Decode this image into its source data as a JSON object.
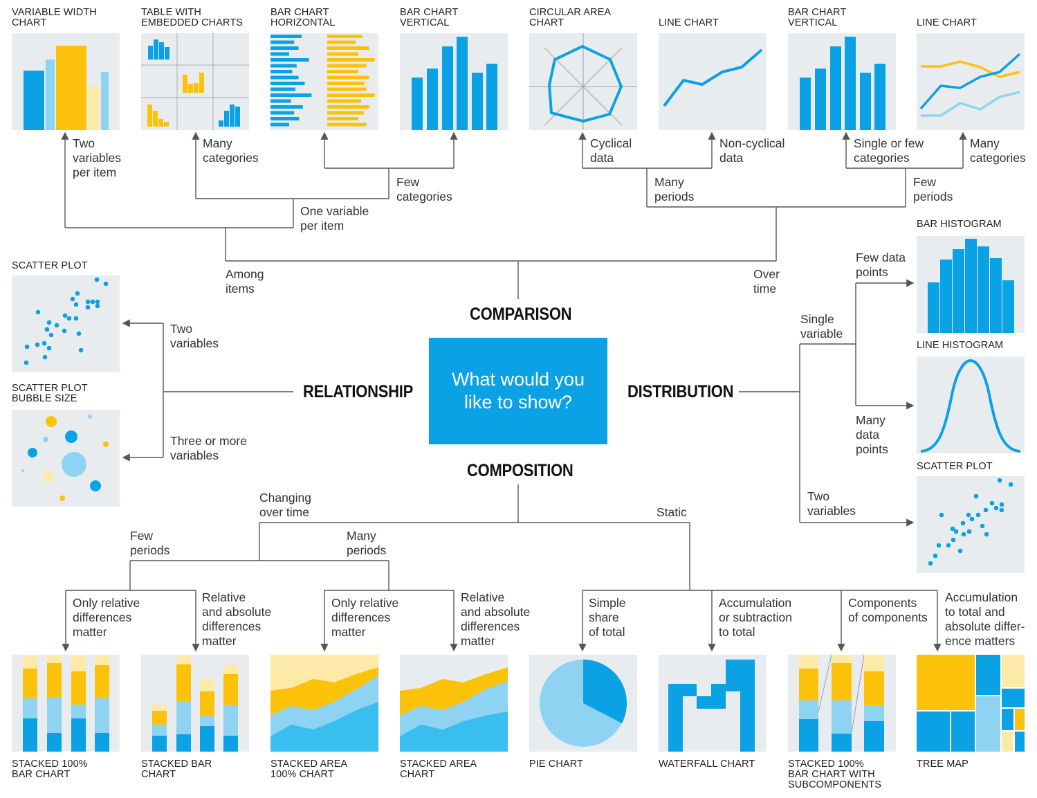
{
  "center": {
    "question": "What would you\nlike to show?"
  },
  "categories": {
    "comparison": "COMPARISON",
    "relationship": "RELATIONSHIP",
    "distribution": "DISTRIBUTION",
    "composition": "COMPOSITION"
  },
  "charts": {
    "variable_width": "VARIABLE WIDTH\nCHART",
    "table_embedded": "TABLE WITH\nEMBEDDED CHARTS",
    "bar_horizontal": "BAR CHART\nHORIZONTAL",
    "bar_vertical_1": "BAR CHART\nVERTICAL",
    "circular_area": "CIRCULAR AREA\nCHART",
    "line_chart_1": "LINE CHART",
    "bar_vertical_2": "BAR CHART\nVERTICAL",
    "line_chart_2": "LINE CHART",
    "scatter_plot_1": "SCATTER PLOT",
    "scatter_bubble": "SCATTER PLOT\nBUBBLE SIZE",
    "bar_histogram": "BAR HISTOGRAM",
    "line_histogram": "LINE HISTOGRAM",
    "scatter_plot_2": "SCATTER PLOT",
    "stacked_100_bar": "STACKED 100%\nBAR CHART",
    "stacked_bar": "STACKED BAR\nCHART",
    "stacked_area_100": "STACKED AREA\n100% CHART",
    "stacked_area": "STACKED AREA\nCHART",
    "pie": "PIE CHART",
    "waterfall": "WATERFALL CHART",
    "stacked_100_sub": "STACKED 100%\nBAR CHART WITH\nSUBCOMPONENTS",
    "tree_map": "TREE MAP"
  },
  "notes": {
    "two_variables_per_item": "Two\nvariables\nper item",
    "many_categories_1": "Many\ncategories",
    "few_categories": "Few\ncategories",
    "one_variable_per_item": "One variable\nper item",
    "among_items": "Among\nitems",
    "cyclical_data": "Cyclical\ndata",
    "non_cyclical_data": "Non-cyclical\ndata",
    "single_or_few": "Single or few\ncategories",
    "many_categories_2": "Many\ncategories",
    "many_periods_1": "Many\nperiods",
    "few_periods_1": "Few\nperiods",
    "over_time": "Over\ntime",
    "two_variables_rel": "Two\nvariables",
    "three_or_more": "Three or more\nvariables",
    "few_data_points": "Few data\npoints",
    "single_variable": "Single\nvariable",
    "many_data_points": "Many\ndata\npoints",
    "two_variables_dist": "Two\nvariables",
    "changing_over_time": "Changing\nover time",
    "static": "Static",
    "few_periods_2": "Few\nperiods",
    "many_periods_2": "Many\nperiods",
    "only_relative_1": "Only relative\ndifferences\nmatter",
    "relative_absolute_1": "Relative\nand absolute\ndifferences\nmatter",
    "only_relative_2": "Only relative\ndifferences\nmatter",
    "relative_absolute_2": "Relative\nand absolute\ndifferences\nmatter",
    "simple_share": "Simple\nshare\nof total",
    "accumulation_subtraction": "Accumulation\nor subtraction\nto total",
    "components_of_components": "Components\nof components",
    "accumulation_absolute": "Accumulation\nto total and\nabsolute differ-\nence matters"
  },
  "colors": {
    "blue": "#0aa2e4",
    "light_blue": "#8fd3f3",
    "yellow": "#fcc20a",
    "light_yellow": "#fde9a8",
    "panel": "#e9ecef",
    "line": "#555555"
  }
}
